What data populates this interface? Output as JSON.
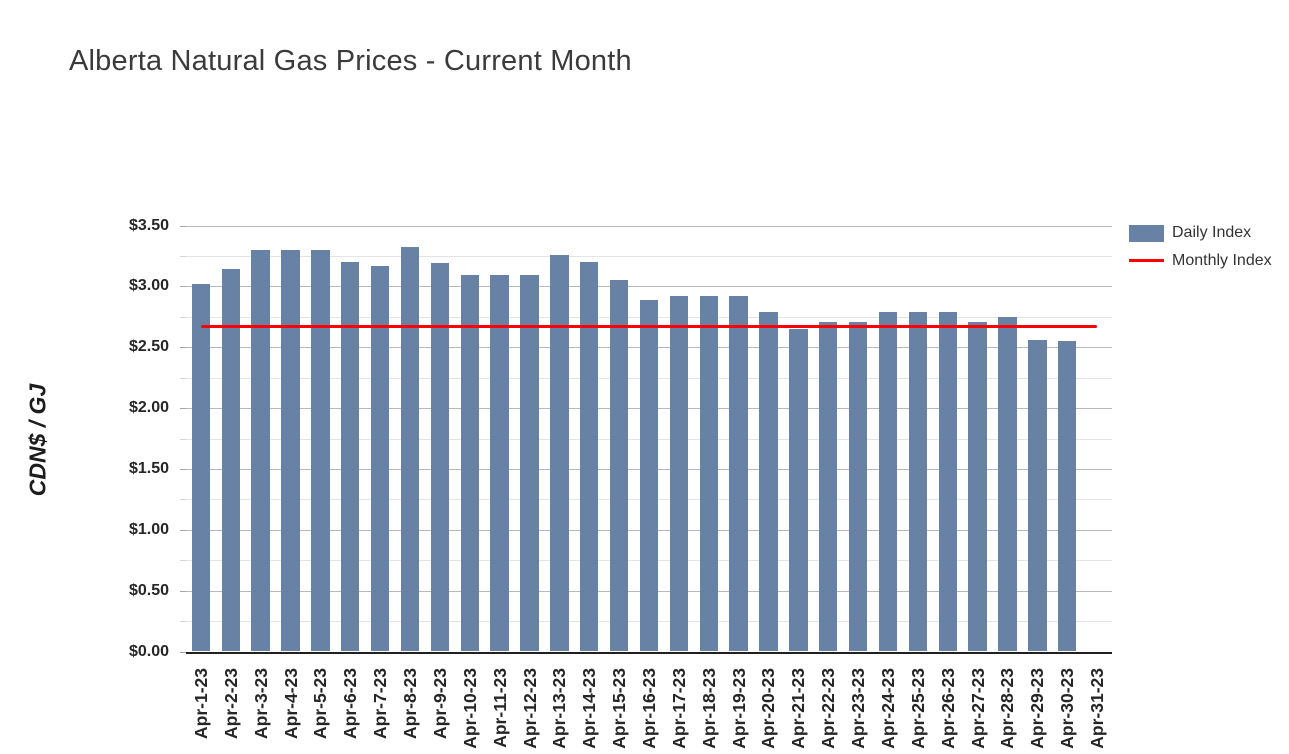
{
  "chart_data": {
    "type": "bar",
    "title": "Alberta Natural Gas Prices - Current Month",
    "xlabel": "",
    "ylabel": "CDN$ / GJ",
    "ylim": [
      0,
      3.5
    ],
    "ytick_step": 0.5,
    "ytick_minor_step": 0.25,
    "ytick_format": "$#.00",
    "grid": true,
    "legend_position": "top-right",
    "categories": [
      "Apr-1-23",
      "Apr-2-23",
      "Apr-3-23",
      "Apr-4-23",
      "Apr-5-23",
      "Apr-6-23",
      "Apr-7-23",
      "Apr-8-23",
      "Apr-9-23",
      "Apr-10-23",
      "Apr-11-23",
      "Apr-12-23",
      "Apr-13-23",
      "Apr-14-23",
      "Apr-15-23",
      "Apr-16-23",
      "Apr-17-23",
      "Apr-18-23",
      "Apr-19-23",
      "Apr-20-23",
      "Apr-21-23",
      "Apr-22-23",
      "Apr-23-23",
      "Apr-24-23",
      "Apr-25-23",
      "Apr-26-23",
      "Apr-27-23",
      "Apr-28-23",
      "Apr-29-23",
      "Apr-30-23",
      "Apr-31-23"
    ],
    "series": [
      {
        "name": "Daily Index",
        "type": "bar",
        "values": [
          3.02,
          3.14,
          3.3,
          3.3,
          3.3,
          3.2,
          3.17,
          3.32,
          3.19,
          3.09,
          3.09,
          3.09,
          3.26,
          3.2,
          3.05,
          2.89,
          2.92,
          2.92,
          2.92,
          2.79,
          2.65,
          2.71,
          2.71,
          2.79,
          2.79,
          2.79,
          2.71,
          2.75,
          2.56,
          2.55,
          null
        ]
      },
      {
        "name": "Monthly Index",
        "type": "line",
        "value": 2.67
      }
    ]
  },
  "legend": {
    "items": [
      {
        "label": "Daily Index",
        "swatch": "bar"
      },
      {
        "label": "Monthly Index",
        "swatch": "line"
      }
    ]
  },
  "colors": {
    "bar": "#6782a4",
    "line": "#fe0000",
    "major_grid": "#b5b9bb",
    "minor_grid": "#e2e5e6",
    "major_tick": "#a2a7a9",
    "minor_tick": "#d3d7d8",
    "axis_line": "#202020",
    "title_text": "#3b3b3b",
    "tick_text": "#262626",
    "legend_text": "#333333"
  }
}
